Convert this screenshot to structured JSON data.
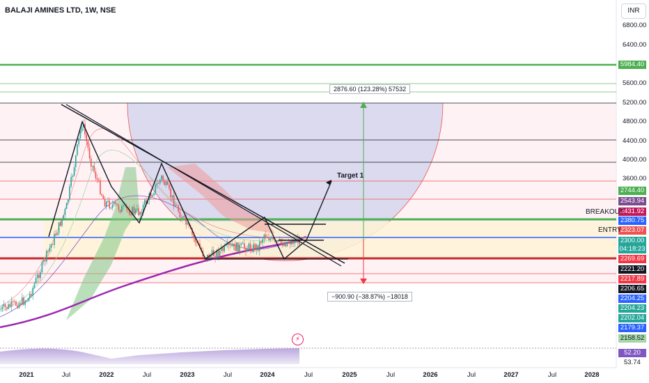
{
  "header": {
    "title": "BALAJI AMINES LTD, 1W, NSE",
    "currency": "INR"
  },
  "price_axis": {
    "ticks": [
      "6800.00",
      "6400.00",
      "5600.00",
      "5200.00",
      "4800.00",
      "4400.00",
      "4000.00",
      "3600.00"
    ],
    "bottom_value": "53.74"
  },
  "badges": [
    {
      "label": "5984.40",
      "color": "#4caf50"
    },
    {
      "label": "2744.40",
      "color": "#4caf50"
    },
    {
      "label": "2543.94",
      "color": "#7b4b8f"
    },
    {
      "label": "2431.92",
      "color": "#c2185b"
    },
    {
      "label": "2380.75",
      "color": "#2962ff"
    },
    {
      "label": "2323.07",
      "color": "#ef5350"
    },
    {
      "label": "2300.00",
      "color": "#26a69a"
    },
    {
      "label": "04:18:23",
      "color": "#26a69a"
    },
    {
      "label": "2269.69",
      "color": "#f23645"
    },
    {
      "label": "2221.20",
      "color": "#131722"
    },
    {
      "label": "2217.89",
      "color": "#f23645"
    },
    {
      "label": "2206.65",
      "color": "#131722"
    },
    {
      "label": "2204.25",
      "color": "#2962ff"
    },
    {
      "label": "2204.23",
      "color": "#26a69a"
    },
    {
      "label": "2202.04",
      "color": "#26a69a"
    },
    {
      "label": "2179.37",
      "color": "#2962ff"
    },
    {
      "label": "2158.52",
      "color": "#a5d6a7"
    },
    {
      "label": "52.20",
      "color": "#7e57c2"
    }
  ],
  "time_axis": [
    "2021",
    "Jul",
    "2022",
    "Jul",
    "2023",
    "Jul",
    "2024",
    "Jul",
    "2025",
    "Jul",
    "2026",
    "Jul",
    "2027",
    "Jul",
    "2028"
  ],
  "annotations": {
    "target": "Target 1",
    "breakout": "BREAKOUT",
    "entry": "ENTRY",
    "measure_up": "2876.60 (123.28%) 57532",
    "measure_down": "−900.90 (−38.87%) −18018"
  },
  "colors": {
    "up": "#26a69a",
    "down": "#ef5350",
    "ema200": "#9c27b0",
    "ema_thin": "#7e57c2"
  },
  "icons": {
    "event": "lightning-icon"
  }
}
